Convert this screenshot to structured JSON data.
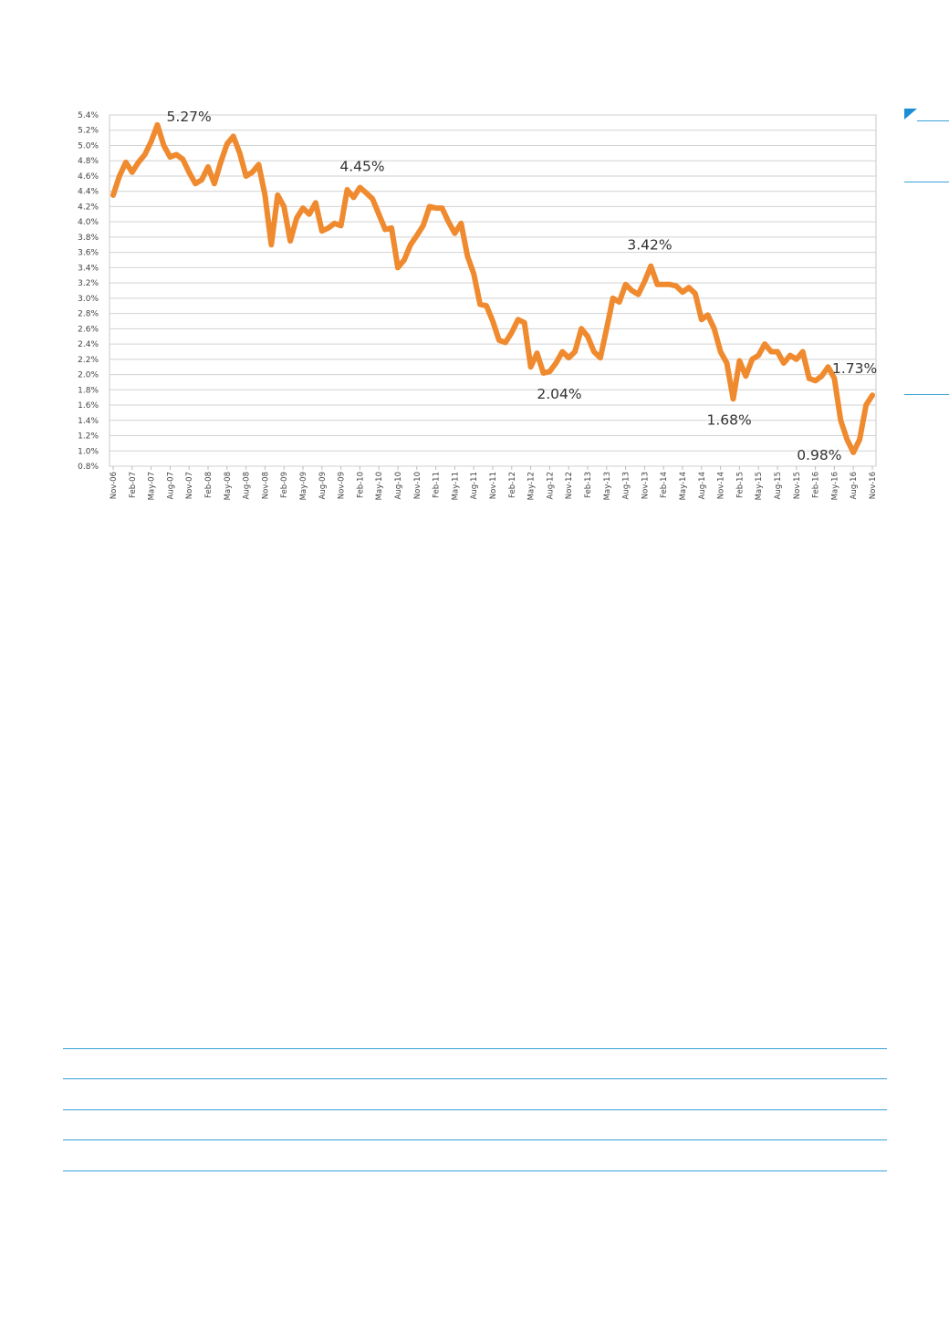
{
  "accent_color": "#1b8fd6",
  "line_color": "#ef8a2f",
  "chart_data": {
    "type": "line",
    "ylim": [
      0.8,
      5.4
    ],
    "ytick_step": 0.2,
    "grid": true,
    "x_tick_labels": [
      "Nov-06",
      "Feb-07",
      "May-07",
      "Aug-07",
      "Nov-07",
      "Feb-08",
      "May-08",
      "Aug-08",
      "Nov-08",
      "Feb-09",
      "May-09",
      "Aug-09",
      "Nov-09",
      "Feb-10",
      "May-10",
      "Aug-10",
      "Nov-10",
      "Feb-11",
      "May-11",
      "Aug-11",
      "Nov-11",
      "Feb-12",
      "May-12",
      "Aug-12",
      "Nov-12",
      "Feb-13",
      "May-13",
      "Aug-13",
      "Nov-13",
      "Feb-14",
      "May-14",
      "Aug-14",
      "Nov-14",
      "Feb-15",
      "May-15",
      "Aug-15",
      "Nov-15",
      "Feb-16",
      "May-16",
      "Aug-16",
      "Nov-16"
    ],
    "y_tick_labels": [
      "0.8%",
      "1.0%",
      "1.2%",
      "1.4%",
      "1.6%",
      "1.8%",
      "2.0%",
      "2.2%",
      "2.4%",
      "2.6%",
      "2.8%",
      "3.0%",
      "3.2%",
      "3.4%",
      "3.6%",
      "3.8%",
      "4.0%",
      "4.2%",
      "4.4%",
      "4.6%",
      "4.8%",
      "5.0%",
      "5.2%",
      "5.4%"
    ],
    "months_from_start_note": null,
    "values": [
      4.35,
      4.6,
      4.78,
      4.65,
      4.78,
      4.88,
      5.05,
      5.27,
      5.0,
      4.85,
      4.88,
      4.82,
      4.65,
      4.5,
      4.55,
      4.72,
      4.5,
      4.78,
      5.02,
      5.12,
      4.9,
      4.6,
      4.65,
      4.75,
      4.35,
      3.7,
      4.35,
      4.2,
      3.75,
      4.05,
      4.18,
      4.1,
      4.25,
      3.88,
      3.92,
      3.98,
      3.95,
      4.42,
      4.32,
      4.45,
      4.38,
      4.3,
      4.1,
      3.9,
      3.92,
      3.4,
      3.5,
      3.7,
      3.82,
      3.95,
      4.2,
      4.18,
      4.18,
      4.0,
      3.85,
      3.98,
      3.55,
      3.32,
      2.92,
      2.9,
      2.7,
      2.45,
      2.42,
      2.55,
      2.72,
      2.68,
      2.1,
      2.28,
      2.02,
      2.04,
      2.15,
      2.3,
      2.22,
      2.3,
      2.6,
      2.5,
      2.3,
      2.22,
      2.6,
      3.0,
      2.95,
      3.18,
      3.1,
      3.05,
      3.22,
      3.42,
      3.18,
      3.18,
      3.18,
      3.16,
      3.08,
      3.14,
      3.06,
      2.72,
      2.78,
      2.6,
      2.3,
      2.15,
      1.68,
      2.18,
      1.98,
      2.2,
      2.25,
      2.4,
      2.3,
      2.3,
      2.15,
      2.25,
      2.2,
      2.3,
      1.95,
      1.92,
      1.98,
      2.1,
      1.95,
      1.4,
      1.15,
      0.98,
      1.15,
      1.6,
      1.73
    ],
    "annotations": [
      {
        "index": 7,
        "label": "5.27%"
      },
      {
        "index": 39,
        "label": "4.45%"
      },
      {
        "index": 69,
        "label": "2.04%"
      },
      {
        "index": 85,
        "label": "3.42%"
      },
      {
        "index": 98,
        "label": "1.68%"
      },
      {
        "index": 117,
        "label": "0.98%"
      },
      {
        "index": 120,
        "label": "1.73%"
      }
    ]
  }
}
